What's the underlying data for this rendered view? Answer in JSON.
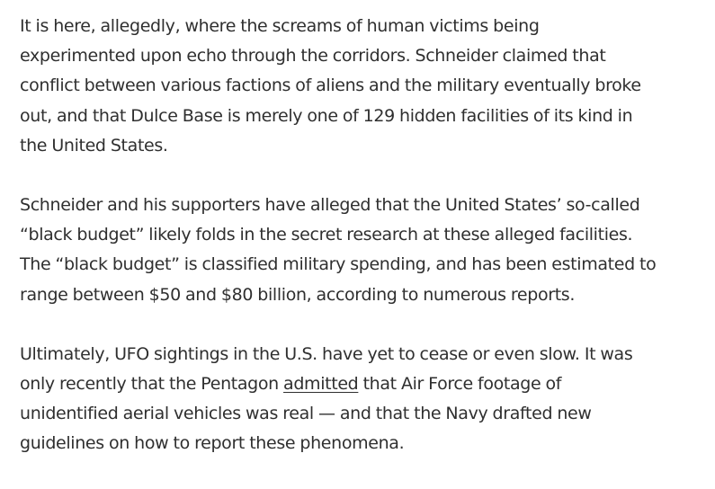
{
  "article": {
    "paragraphs": [
      {
        "lines": [
          "It is here, allegedly, where the screams of human victims being",
          "experimented upon echo through the corridors. Schneider claimed that",
          "conflict between various factions of aliens and the military eventually broke",
          "out, and that Dulce Base is merely one of 129 hidden facilities of its kind in",
          "the United States."
        ]
      },
      {
        "lines": [
          "Schneider and his supporters have alleged that the United States’ so-called",
          "“black budget” likely folds in the secret research at these alleged facilities.",
          "The “black budget” is classified military spending, and has been estimated to",
          "range between $50 and $80 billion, according to numerous reports."
        ]
      },
      {
        "line1": "Ultimately, UFO sightings in the U.S. have yet to cease or even slow. It was",
        "line2_before": "only recently that the Pentagon ",
        "line2_link": "admitted",
        "line2_after": " that Air Force footage of",
        "line3": "unidentified aerial vehicles was real — and that the Navy drafted new",
        "line4": "guidelines on how to report these phenomena."
      }
    ]
  }
}
